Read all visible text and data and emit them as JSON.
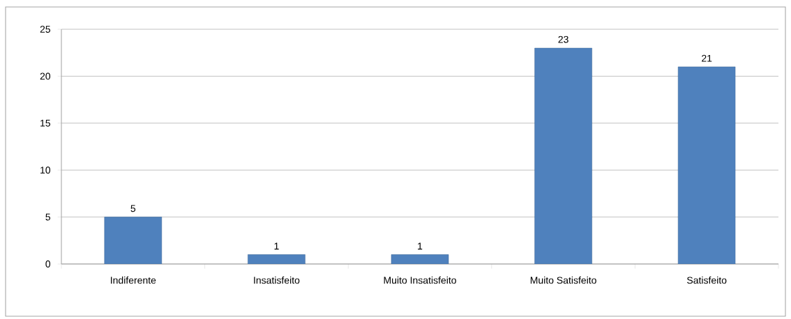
{
  "chart_data": {
    "type": "bar",
    "categories": [
      "Indiferente",
      "Insatisfeito",
      "Muito Insatisfeito",
      "Muito Satisfeito",
      "Satisfeito"
    ],
    "values": [
      5,
      1,
      1,
      23,
      21
    ],
    "color": "#4f81bd",
    "ylim": [
      0,
      25
    ],
    "yticks": [
      0,
      5,
      10,
      15,
      20,
      25
    ],
    "grid": "y",
    "data_labels": true
  }
}
